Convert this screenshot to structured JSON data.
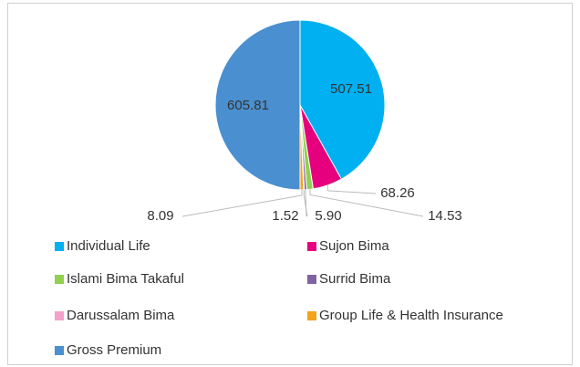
{
  "chart_data": {
    "type": "pie",
    "categories": [
      "Individual Life",
      "Sujon Bima",
      "Islami Bima Takaful",
      "Surrid Bima",
      "Darussalam Bima",
      "Group Life & Health Insurance",
      "Gross Premium"
    ],
    "values": [
      507.51,
      68.26,
      14.53,
      5.9,
      1.52,
      8.09,
      605.81
    ],
    "value_labels": [
      "507.51",
      "68.26",
      "14.53",
      "5.90",
      "1.52",
      "8.09",
      "605.81"
    ],
    "colors": [
      "#00b0f0",
      "#e6007e",
      "#92d050",
      "#8064a2",
      "#f4a0c8",
      "#f5a31a",
      "#4a8fcf"
    ],
    "legend": "bottom"
  }
}
